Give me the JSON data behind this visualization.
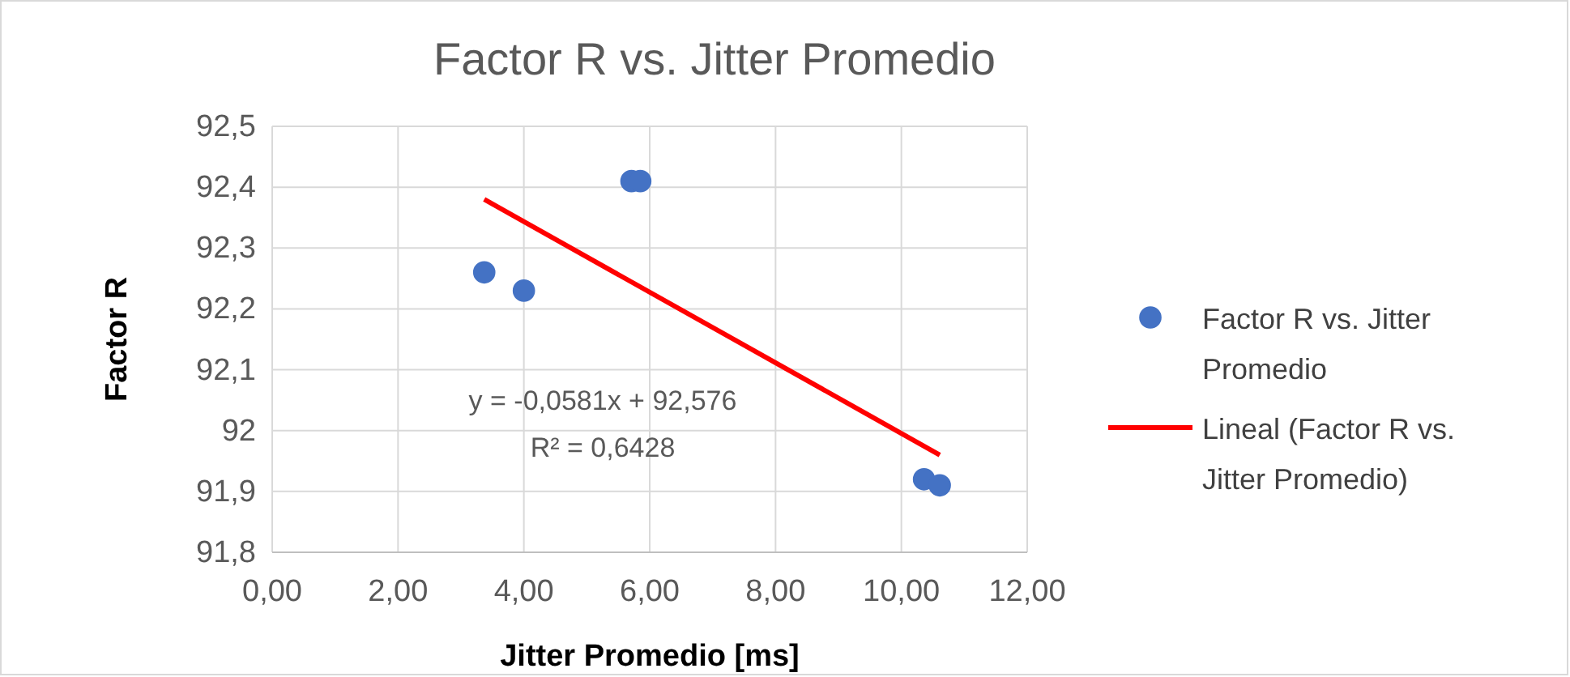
{
  "chart_data": {
    "type": "scatter",
    "title": "Factor R vs. Jitter Promedio",
    "xlabel": "Jitter Promedio [ms]",
    "ylabel": "Factor R",
    "xlim": [
      0,
      12
    ],
    "xticks": [
      {
        "value": 0,
        "label": "0,00"
      },
      {
        "value": 2,
        "label": "2,00"
      },
      {
        "value": 4,
        "label": "4,00"
      },
      {
        "value": 6,
        "label": "6,00"
      },
      {
        "value": 8,
        "label": "8,00"
      },
      {
        "value": 10,
        "label": "10,00"
      },
      {
        "value": 12,
        "label": "12,00"
      }
    ],
    "ylim": [
      91.8,
      92.5
    ],
    "yticks": [
      {
        "value": 91.8,
        "label": "91,8"
      },
      {
        "value": 91.9,
        "label": "91,9"
      },
      {
        "value": 92,
        "label": "92"
      },
      {
        "value": 92.1,
        "label": "92,1"
      },
      {
        "value": 92.2,
        "label": "92,2"
      },
      {
        "value": 92.3,
        "label": "92,3"
      },
      {
        "value": 92.4,
        "label": "92,4"
      },
      {
        "value": 92.5,
        "label": "92,5"
      }
    ],
    "grid": true,
    "legend": "right",
    "series": [
      {
        "name": "Factor R vs. Jitter Promedio",
        "marker": "circle",
        "color": "#4472c4",
        "x": [
          3.37,
          4.0,
          5.71,
          5.85,
          10.36,
          10.61
        ],
        "values": [
          92.26,
          92.23,
          92.41,
          92.41,
          91.92,
          91.91
        ]
      },
      {
        "name": "Lineal (Factor R vs. Jitter Promedio)",
        "type": "line",
        "marker": "none",
        "color": "#ff0000",
        "x": [
          3.37,
          10.61
        ],
        "values": [
          92.38,
          91.96
        ]
      }
    ],
    "annotations": [
      "y = -0,0581x + 92,576",
      "R² = 0,6428"
    ]
  }
}
